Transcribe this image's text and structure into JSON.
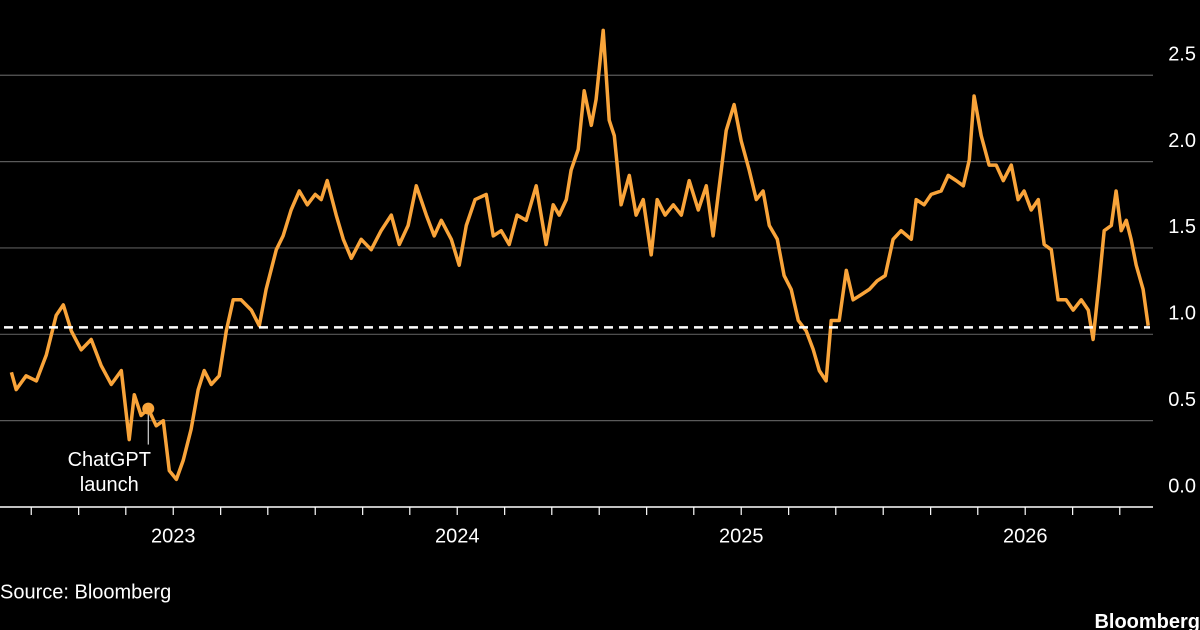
{
  "chart_data": {
    "type": "line",
    "color": "#f9a43a",
    "grid": true,
    "xlim": [
      2022.39,
      2026.45
    ],
    "xticks": [
      2023,
      2024,
      2025,
      2026
    ],
    "xminorticks": [
      2022.5,
      2022.667,
      2022.833,
      2023.167,
      2023.333,
      2023.5,
      2023.667,
      2023.833,
      2024.167,
      2024.333,
      2024.5,
      2024.667,
      2024.833,
      2025.167,
      2025.333,
      2025.5,
      2025.667,
      2025.833,
      2026.167,
      2026.333
    ],
    "ylim": [
      0,
      2.82
    ],
    "yticks": [
      {
        "value": 0,
        "label": "0.0"
      },
      0.5,
      {
        "value": 1,
        "label": "1.0"
      },
      1.5,
      {
        "value": 2,
        "label": "2.0"
      },
      2.5
    ],
    "hline": 1.04,
    "annotation": {
      "text": [
        "ChatGPT",
        "launch"
      ],
      "x": 2022.912,
      "y": 0.57
    },
    "source": "Source: Bloomberg",
    "brand": "Bloomberg",
    "x": [
      2022.43,
      2022.447,
      2022.482,
      2022.518,
      2022.553,
      2022.588,
      2022.613,
      2022.641,
      2022.676,
      2022.711,
      2022.746,
      2022.782,
      2022.817,
      2022.845,
      2022.863,
      2022.887,
      2022.912,
      2022.94,
      2022.965,
      2022.986,
      2023.011,
      2023.035,
      2023.063,
      2023.088,
      2023.109,
      2023.134,
      2023.162,
      2023.187,
      2023.211,
      2023.239,
      2023.275,
      2023.303,
      2023.327,
      2023.363,
      2023.387,
      2023.415,
      2023.444,
      2023.472,
      2023.5,
      2023.521,
      2023.542,
      2023.574,
      2023.599,
      2023.627,
      2023.662,
      2023.697,
      2023.732,
      2023.768,
      2023.796,
      2023.827,
      2023.856,
      2023.891,
      2023.919,
      2023.944,
      2023.979,
      2024.007,
      2024.032,
      2024.063,
      2024.102,
      2024.127,
      2024.155,
      2024.183,
      2024.211,
      2024.243,
      2024.278,
      2024.313,
      2024.338,
      2024.359,
      2024.384,
      2024.401,
      2024.426,
      2024.447,
      2024.472,
      2024.489,
      2024.514,
      2024.535,
      2024.553,
      2024.577,
      2024.606,
      2024.63,
      2024.655,
      2024.683,
      2024.704,
      2024.732,
      2024.761,
      2024.789,
      2024.817,
      2024.849,
      2024.877,
      2024.901,
      2024.923,
      2024.947,
      2024.975,
      2025.0,
      2025.028,
      2025.053,
      2025.077,
      2025.099,
      2025.127,
      2025.151,
      2025.176,
      2025.201,
      2025.229,
      2025.254,
      2025.275,
      2025.299,
      2025.317,
      2025.345,
      2025.37,
      2025.394,
      2025.423,
      2025.451,
      2025.479,
      2025.507,
      2025.535,
      2025.563,
      2025.599,
      2025.616,
      2025.644,
      2025.669,
      2025.704,
      2025.729,
      2025.757,
      2025.782,
      2025.803,
      2025.82,
      2025.845,
      2025.873,
      2025.898,
      2025.923,
      2025.951,
      2025.975,
      2025.996,
      2026.021,
      2026.046,
      2026.067,
      2026.092,
      2026.116,
      2026.144,
      2026.169,
      2026.197,
      2026.222,
      2026.239,
      2026.261,
      2026.278,
      2026.303,
      2026.32,
      2026.338,
      2026.356,
      2026.373,
      2026.391,
      2026.415,
      2026.433
    ],
    "values": [
      0.78,
      0.68,
      0.76,
      0.73,
      0.88,
      1.11,
      1.17,
      1.02,
      0.91,
      0.97,
      0.82,
      0.71,
      0.79,
      0.39,
      0.65,
      0.53,
      0.57,
      0.47,
      0.5,
      0.21,
      0.16,
      0.27,
      0.45,
      0.68,
      0.79,
      0.71,
      0.76,
      1.02,
      1.2,
      1.2,
      1.14,
      1.05,
      1.26,
      1.49,
      1.57,
      1.72,
      1.83,
      1.75,
      1.81,
      1.78,
      1.89,
      1.69,
      1.55,
      1.44,
      1.55,
      1.49,
      1.6,
      1.69,
      1.52,
      1.63,
      1.86,
      1.69,
      1.57,
      1.66,
      1.55,
      1.4,
      1.63,
      1.78,
      1.81,
      1.57,
      1.6,
      1.52,
      1.69,
      1.66,
      1.86,
      1.52,
      1.75,
      1.69,
      1.78,
      1.95,
      2.07,
      2.41,
      2.21,
      2.36,
      2.76,
      2.24,
      2.15,
      1.75,
      1.92,
      1.69,
      1.78,
      1.46,
      1.78,
      1.69,
      1.75,
      1.69,
      1.89,
      1.72,
      1.86,
      1.57,
      1.86,
      2.18,
      2.33,
      2.12,
      1.95,
      1.78,
      1.83,
      1.63,
      1.55,
      1.34,
      1.26,
      1.08,
      1.02,
      0.91,
      0.79,
      0.73,
      1.08,
      1.08,
      1.37,
      1.2,
      1.23,
      1.26,
      1.31,
      1.34,
      1.55,
      1.6,
      1.55,
      1.78,
      1.75,
      1.81,
      1.83,
      1.92,
      1.89,
      1.86,
      2.01,
      2.38,
      2.15,
      1.98,
      1.98,
      1.89,
      1.98,
      1.78,
      1.83,
      1.72,
      1.78,
      1.52,
      1.49,
      1.2,
      1.2,
      1.14,
      1.2,
      1.14,
      0.97,
      1.31,
      1.6,
      1.63,
      1.83,
      1.6,
      1.66,
      1.55,
      1.4,
      1.26,
      1.05
    ]
  }
}
